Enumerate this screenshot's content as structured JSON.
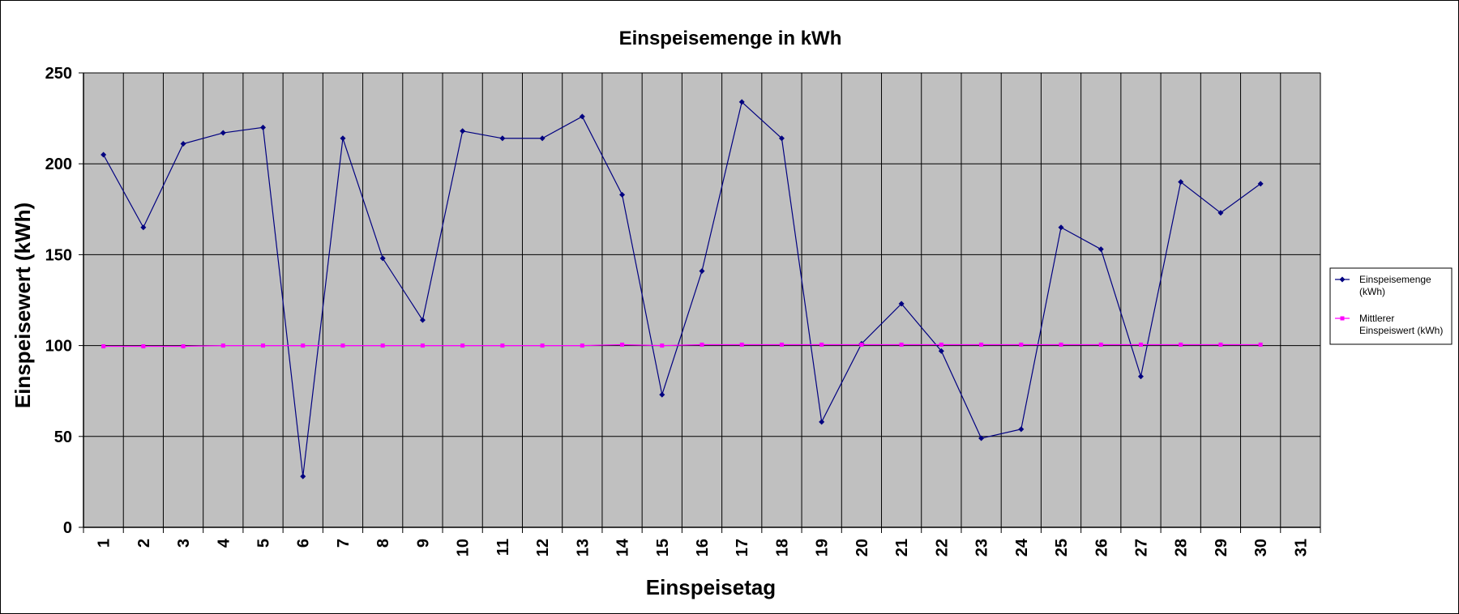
{
  "colors": {
    "plot_background": "#c0c0c0",
    "grid": "#000000",
    "series_1": "#000080",
    "series_2": "#ff00ff"
  },
  "chart_data": {
    "type": "line",
    "title": "Einspeisemenge in kWh",
    "xlabel": "Einspeisetag",
    "ylabel": "Einspeisewert  (kWh)",
    "ylim": [
      0,
      250
    ],
    "yticks": [
      0,
      50,
      100,
      150,
      200,
      250
    ],
    "categories": [
      "1",
      "2",
      "3",
      "4",
      "5",
      "6",
      "7",
      "8",
      "9",
      "10",
      "11",
      "12",
      "13",
      "14",
      "15",
      "16",
      "17",
      "18",
      "19",
      "20",
      "21",
      "22",
      "23",
      "24",
      "25",
      "26",
      "27",
      "28",
      "29",
      "30",
      "31"
    ],
    "grid": true,
    "legend_position": "right",
    "series": [
      {
        "name": "Einspeisemenge (kWh)",
        "legend_lines": [
          "Einspeisemenge",
          "(kWh)"
        ],
        "marker": "diamond",
        "color": "#000080",
        "values": [
          205,
          165,
          211,
          217,
          220,
          28,
          214,
          148,
          114,
          218,
          214,
          214,
          226,
          183,
          73,
          141,
          234,
          214,
          58,
          101,
          123,
          97,
          49,
          54,
          165,
          153,
          83,
          190,
          173,
          189,
          null
        ]
      },
      {
        "name": "Mittlerer Einspeiswert (kWh)",
        "legend_lines": [
          "Mittlerer",
          "Einspeiswert (kWh)"
        ],
        "marker": "square",
        "color": "#ff00ff",
        "values": [
          99.6,
          99.6,
          99.6,
          100,
          100,
          100,
          100,
          100,
          100,
          100,
          100,
          100,
          100,
          100.5,
          100,
          100.5,
          100.5,
          100.5,
          100.5,
          100.5,
          100.5,
          100.5,
          100.5,
          100.5,
          100.5,
          100.5,
          100.5,
          100.5,
          100.5,
          100.5,
          null
        ]
      }
    ]
  }
}
